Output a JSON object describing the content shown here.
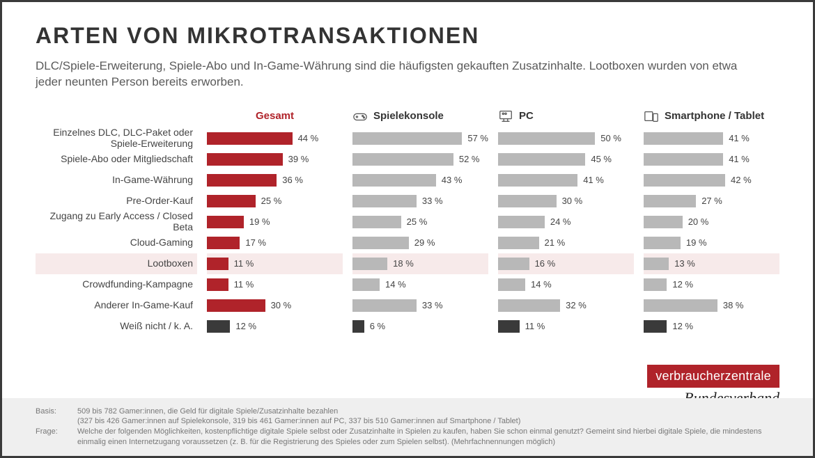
{
  "title": "ARTEN VON MIKROTRANSAKTIONEN",
  "subtitle": "DLC/Spiele-Erweiterung, Spiele-Abo und In-Game-Währung sind die häufigsten gekauften Zusatzinhalte. Lootboxen wurden von etwa jeder neunten Person bereits erworben.",
  "chart": {
    "type": "bar",
    "max_pct": 70,
    "bar_colors": {
      "gesamt_red": "#b0232a",
      "other_grey": "#b8b8b8",
      "dk_dark": "#3a3a3a"
    },
    "background_color": "#ffffff",
    "highlight_row_bg": "#f7eaea",
    "title_fontsize": 32,
    "subtitle_fontsize": 17,
    "label_fontsize": 14,
    "value_fontsize": 13,
    "header_fontsize": 15,
    "columns": [
      {
        "key": "gesamt",
        "label": "Gesamt",
        "color": "#b0232a",
        "icon": null
      },
      {
        "key": "konsole",
        "label": "Spielekonsole",
        "color": "#b8b8b8",
        "icon": "gamepad"
      },
      {
        "key": "pc",
        "label": "PC",
        "color": "#b8b8b8",
        "icon": "monitor"
      },
      {
        "key": "mobile",
        "label": "Smartphone / Tablet",
        "color": "#b8b8b8",
        "icon": "devices"
      }
    ],
    "rows": [
      {
        "label": "Einzelnes DLC, DLC-Paket oder Spiele-Erweiterung",
        "two_line": true,
        "values": {
          "gesamt": 44,
          "konsole": 57,
          "pc": 50,
          "mobile": 41
        }
      },
      {
        "label": "Spiele-Abo oder Mitgliedschaft",
        "values": {
          "gesamt": 39,
          "konsole": 52,
          "pc": 45,
          "mobile": 41
        }
      },
      {
        "label": "In-Game-Währung",
        "values": {
          "gesamt": 36,
          "konsole": 43,
          "pc": 41,
          "mobile": 42
        }
      },
      {
        "label": "Pre-Order-Kauf",
        "values": {
          "gesamt": 25,
          "konsole": 33,
          "pc": 30,
          "mobile": 27
        }
      },
      {
        "label": "Zugang zu Early Access / Closed Beta",
        "two_line": true,
        "values": {
          "gesamt": 19,
          "konsole": 25,
          "pc": 24,
          "mobile": 20
        }
      },
      {
        "label": "Cloud-Gaming",
        "values": {
          "gesamt": 17,
          "konsole": 29,
          "pc": 21,
          "mobile": 19
        }
      },
      {
        "label": "Lootboxen",
        "highlight": true,
        "values": {
          "gesamt": 11,
          "konsole": 18,
          "pc": 16,
          "mobile": 13
        }
      },
      {
        "label": "Crowdfunding-Kampagne",
        "values": {
          "gesamt": 11,
          "konsole": 14,
          "pc": 14,
          "mobile": 12
        }
      },
      {
        "label": "Anderer In-Game-Kauf",
        "values": {
          "gesamt": 30,
          "konsole": 33,
          "pc": 32,
          "mobile": 38
        }
      },
      {
        "label": "Weiß nicht / k. A.",
        "dark": true,
        "values": {
          "gesamt": 12,
          "konsole": 6,
          "pc": 11,
          "mobile": 12
        }
      }
    ]
  },
  "brand": {
    "top": "verbraucherzentrale",
    "bottom": "Bundesverband"
  },
  "footer": {
    "basis_label": "Basis:",
    "basis_text": "509 bis 782 Gamer:innen, die Geld für digitale Spiele/Zusatzinhalte bezahlen\n(327 bis 426 Gamer:innen auf Spielekonsole, 319 bis 461 Gamer:innen auf PC, 337 bis 510 Gamer:innen auf Smartphone / Tablet)",
    "frage_label": "Frage:",
    "frage_text": "Welche der folgenden Möglichkeiten, kostenpflichtige digitale Spiele selbst oder Zusatzinhalte in Spielen zu kaufen, haben Sie schon einmal genutzt? Gemeint sind hierbei digitale Spiele, die mindestens einmalig einen Internetzugang voraussetzen (z. B. für die Registrierung des Spieles oder zum Spielen selbst). (Mehrfachnennungen möglich)"
  }
}
